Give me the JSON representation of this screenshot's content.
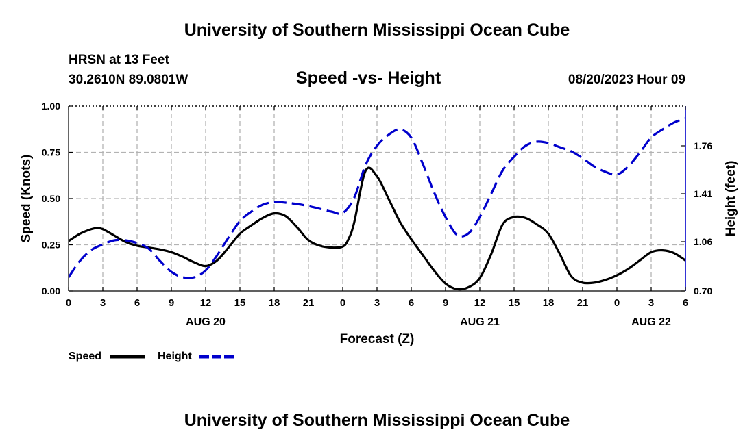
{
  "header": {
    "title": "University of Southern Mississippi Ocean Cube",
    "station": "HRSN at 13 Feet",
    "coords": "30.2610N  89.0801W",
    "date": "08/20/2023 Hour 09",
    "footer_title": "University of Southern Mississippi Ocean Cube"
  },
  "chart_data": {
    "type": "line",
    "title": "Speed -vs- Height",
    "xlabel": "Forecast (Z)",
    "ylabel_left": "Speed (Knots)",
    "ylabel_right": "Height (feet)",
    "x_range_hours": [
      0,
      54
    ],
    "x_tick_labels": [
      "0",
      "3",
      "6",
      "9",
      "12",
      "15",
      "18",
      "21",
      "0",
      "3",
      "6",
      "9",
      "12",
      "15",
      "18",
      "21",
      "0",
      "3",
      "6"
    ],
    "date_labels": [
      {
        "hour": 12,
        "label": "AUG 20"
      },
      {
        "hour": 36,
        "label": "AUG 21"
      },
      {
        "hour": 51,
        "label": "AUG 22"
      }
    ],
    "y_left": {
      "range": [
        0,
        1
      ],
      "ticks": [
        0,
        0.25,
        0.5,
        0.75,
        1
      ],
      "tick_labels": [
        "0.00",
        "0.25",
        "0.50",
        "0.75",
        "1.00"
      ]
    },
    "y_right": {
      "range": [
        0.7,
        2.05
      ],
      "ticks": [
        0.7,
        1.06,
        1.41,
        1.76
      ],
      "tick_labels": [
        "0.70",
        "1.06",
        "1.41",
        "1.76"
      ]
    },
    "grid": true,
    "legend_position": "bottom-left",
    "series": [
      {
        "name": "Speed",
        "axis": "left",
        "color": "#000000",
        "style": "solid",
        "x": [
          0,
          1,
          2,
          2.5,
          3,
          4,
          5,
          6,
          7,
          8,
          9,
          10,
          11,
          12,
          13,
          14,
          15,
          16,
          17,
          18,
          19,
          20,
          21,
          22,
          23,
          24,
          24.5,
          25,
          26,
          27,
          28,
          29,
          30,
          31,
          32,
          33,
          34,
          35,
          36,
          37,
          38,
          39,
          40,
          41,
          42,
          43,
          44,
          45,
          46,
          47,
          48,
          49,
          50,
          51,
          52,
          53,
          54
        ],
        "y": [
          0.27,
          0.31,
          0.335,
          0.34,
          0.335,
          0.3,
          0.265,
          0.245,
          0.235,
          0.225,
          0.21,
          0.185,
          0.155,
          0.135,
          0.165,
          0.235,
          0.31,
          0.355,
          0.395,
          0.42,
          0.405,
          0.345,
          0.275,
          0.245,
          0.235,
          0.24,
          0.28,
          0.37,
          0.65,
          0.62,
          0.5,
          0.375,
          0.28,
          0.195,
          0.11,
          0.04,
          0.01,
          0.02,
          0.07,
          0.2,
          0.36,
          0.4,
          0.395,
          0.36,
          0.31,
          0.2,
          0.08,
          0.045,
          0.045,
          0.06,
          0.085,
          0.12,
          0.165,
          0.21,
          0.22,
          0.205,
          0.165
        ]
      },
      {
        "name": "Height",
        "axis": "right",
        "color": "#0000cc",
        "style": "dashed",
        "x": [
          0,
          1,
          2,
          3,
          4,
          5,
          6,
          7,
          8,
          9,
          10,
          11,
          12,
          13,
          14,
          15,
          16,
          17,
          18,
          19,
          20,
          21,
          22,
          23,
          24,
          25,
          26,
          27,
          28,
          29,
          30,
          31,
          32,
          33,
          34,
          35,
          36,
          37,
          38,
          39,
          40,
          41,
          42,
          43,
          44,
          45,
          46,
          47,
          48,
          49,
          50,
          51,
          52,
          53,
          54
        ],
        "y": [
          0.8,
          0.92,
          1.0,
          1.04,
          1.07,
          1.07,
          1.05,
          1.01,
          0.92,
          0.84,
          0.8,
          0.8,
          0.85,
          0.96,
          1.09,
          1.21,
          1.28,
          1.33,
          1.35,
          1.345,
          1.335,
          1.32,
          1.3,
          1.28,
          1.27,
          1.38,
          1.62,
          1.76,
          1.84,
          1.88,
          1.82,
          1.63,
          1.42,
          1.24,
          1.11,
          1.12,
          1.24,
          1.41,
          1.58,
          1.68,
          1.76,
          1.79,
          1.78,
          1.75,
          1.72,
          1.67,
          1.61,
          1.57,
          1.55,
          1.61,
          1.71,
          1.82,
          1.88,
          1.93,
          1.96
        ]
      }
    ]
  }
}
